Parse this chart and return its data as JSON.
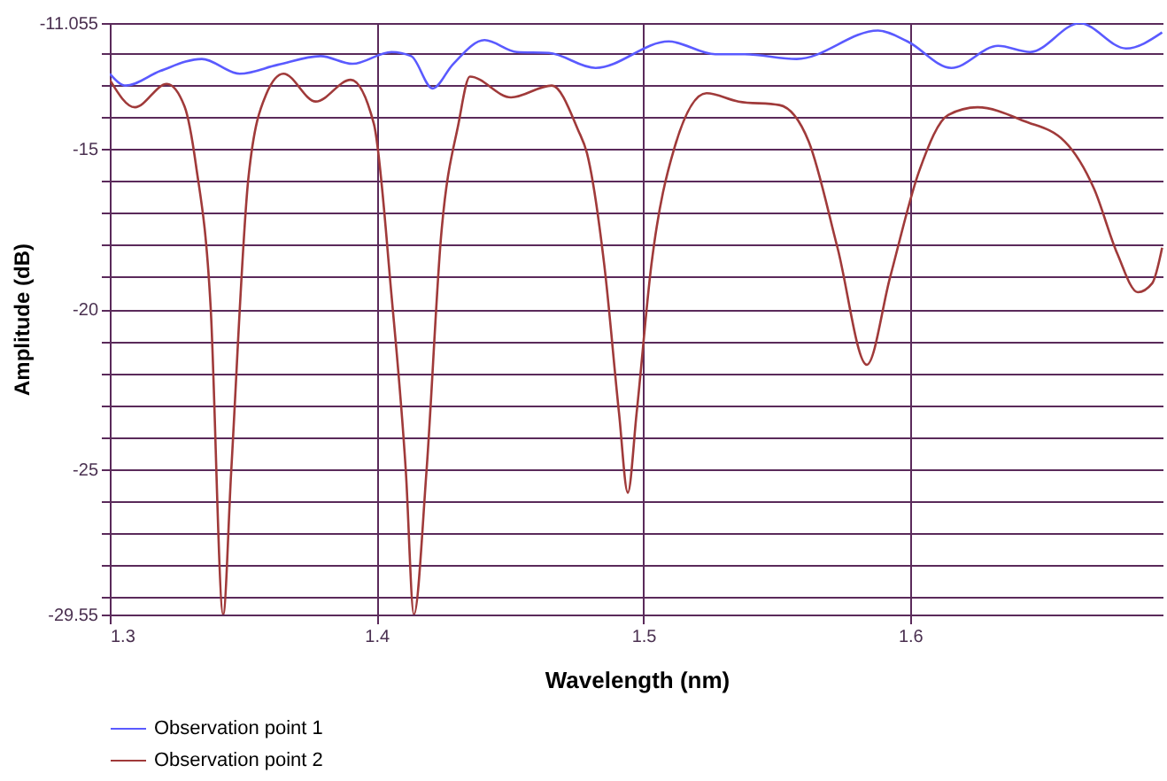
{
  "chart_data": {
    "type": "line",
    "xlabel": "Wavelength (nm)",
    "ylabel": "Amplitude (dB)",
    "xlim": [
      1.3,
      1.695
    ],
    "xticks": [
      1.3,
      1.4,
      1.5,
      1.6
    ],
    "ylim": [
      -29.55,
      -11.055
    ],
    "yticks": [
      -29.55,
      {
        "value": -29,
        "label": null
      },
      {
        "value": -28,
        "label": null
      },
      {
        "value": -27,
        "label": null
      },
      {
        "value": -26,
        "label": null
      },
      -25,
      {
        "value": -24,
        "label": null
      },
      {
        "value": -23,
        "label": null
      },
      {
        "value": -22,
        "label": null
      },
      {
        "value": -21,
        "label": null
      },
      -20,
      {
        "value": -19,
        "label": null
      },
      {
        "value": -18,
        "label": null
      },
      {
        "value": -17,
        "label": null
      },
      {
        "value": -16,
        "label": null
      },
      -15,
      {
        "value": -14,
        "label": null
      },
      {
        "value": -13,
        "label": null
      },
      {
        "value": -12,
        "label": null
      },
      -11.055
    ],
    "grid": true,
    "legend": "bottom",
    "line_style": "solid",
    "series": [
      {
        "name": "Observation point 1",
        "color": "#5a5aff",
        "x": [
          1.3,
          1.306,
          1.319,
          1.3345,
          1.3487,
          1.363,
          1.379,
          1.391,
          1.4056,
          1.413,
          1.421,
          1.4285,
          1.4405,
          1.4526,
          1.4646,
          1.4821,
          1.5095,
          1.527,
          1.538,
          1.5575,
          1.588,
          1.599,
          1.6155,
          1.633,
          1.645,
          1.6636,
          1.681,
          1.6945
        ],
        "values": [
          -12.64,
          -13.01,
          -12.55,
          -12.18,
          -12.64,
          -12.36,
          -12.09,
          -12.33,
          -11.96,
          -12.09,
          -13.1,
          -12.36,
          -11.59,
          -11.96,
          -11.99,
          -12.46,
          -11.63,
          -12.03,
          -12.03,
          -12.18,
          -11.29,
          -11.63,
          -12.46,
          -11.77,
          -11.96,
          -11.06,
          -11.85,
          -11.35
        ]
      },
      {
        "name": "Observation point 2",
        "color": "#a03a3a",
        "x": [
          1.3,
          1.3094,
          1.3214,
          1.328,
          1.3323,
          1.3378,
          1.3425,
          1.3455,
          1.352,
          1.3586,
          1.3651,
          1.3772,
          1.3903,
          1.399,
          1.4056,
          1.411,
          1.414,
          1.4187,
          1.4242,
          1.4307,
          1.435,
          1.4504,
          1.4657,
          1.4755,
          1.4789,
          1.4854,
          1.4909,
          1.4942,
          1.4975,
          1.503,
          1.5117,
          1.5237,
          1.5357,
          1.551,
          1.562,
          1.5728,
          1.5838,
          1.5925,
          1.6034,
          1.6143,
          1.6253,
          1.6428,
          1.658,
          1.669,
          1.6777,
          1.6854,
          1.6908,
          1.6945
        ],
        "values": [
          -12.83,
          -13.69,
          -12.96,
          -13.66,
          -15.5,
          -19.93,
          -29.55,
          -25.1,
          -15.87,
          -13.29,
          -12.64,
          -13.51,
          -12.83,
          -14.21,
          -19.56,
          -25.1,
          -29.55,
          -25.1,
          -17.72,
          -14.21,
          -12.73,
          -13.38,
          -13.01,
          -14.39,
          -15.13,
          -18.64,
          -23.25,
          -25.74,
          -23.25,
          -18.64,
          -14.95,
          -13.25,
          -13.51,
          -13.62,
          -14.76,
          -18.08,
          -21.74,
          -19.01,
          -15.69,
          -13.93,
          -13.69,
          -14.12,
          -14.76,
          -16.24,
          -18.27,
          -19.47,
          -19.19,
          -18.08
        ]
      }
    ]
  }
}
